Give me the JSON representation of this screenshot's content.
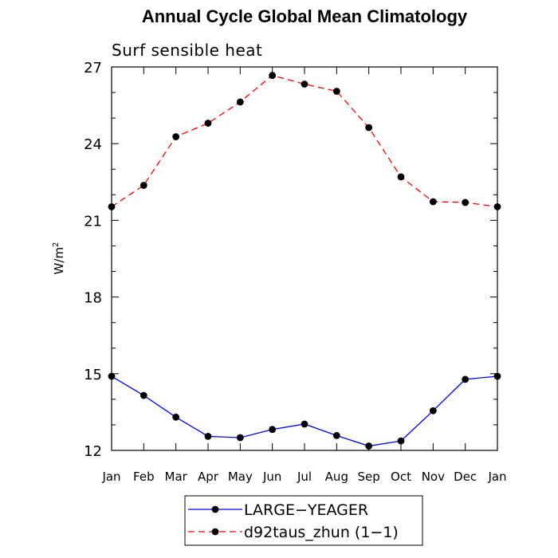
{
  "chart_data": {
    "type": "line",
    "title": "Annual Cycle Global Mean Climatology",
    "subtitle": "Surf sensible heat",
    "ylabel": "W/m",
    "ylabel_superscript": "2",
    "xlabel": "",
    "categories": [
      "Jan",
      "Feb",
      "Mar",
      "Apr",
      "May",
      "Jun",
      "Jul",
      "Aug",
      "Sep",
      "Oct",
      "Nov",
      "Dec",
      "Jan"
    ],
    "ylim": [
      12,
      27
    ],
    "yticks": [
      12,
      15,
      18,
      21,
      24,
      27
    ],
    "grid": false,
    "legend_position": "bottom",
    "series": [
      {
        "name": "LARGE−YEAGER",
        "color": "#0000ff",
        "dash": "solid",
        "marker": "filled-circle",
        "values": [
          14.9,
          14.15,
          13.3,
          12.55,
          12.5,
          12.82,
          13.03,
          12.58,
          12.17,
          12.37,
          13.55,
          14.78,
          14.9
        ]
      },
      {
        "name": "d92taus_zhun (1−1)",
        "color": "#ff0000",
        "dash": "dashed",
        "marker": "filled-circle",
        "values": [
          21.53,
          22.37,
          24.27,
          24.8,
          25.63,
          26.67,
          26.33,
          26.05,
          24.63,
          22.7,
          21.73,
          21.7,
          21.53
        ]
      }
    ]
  }
}
